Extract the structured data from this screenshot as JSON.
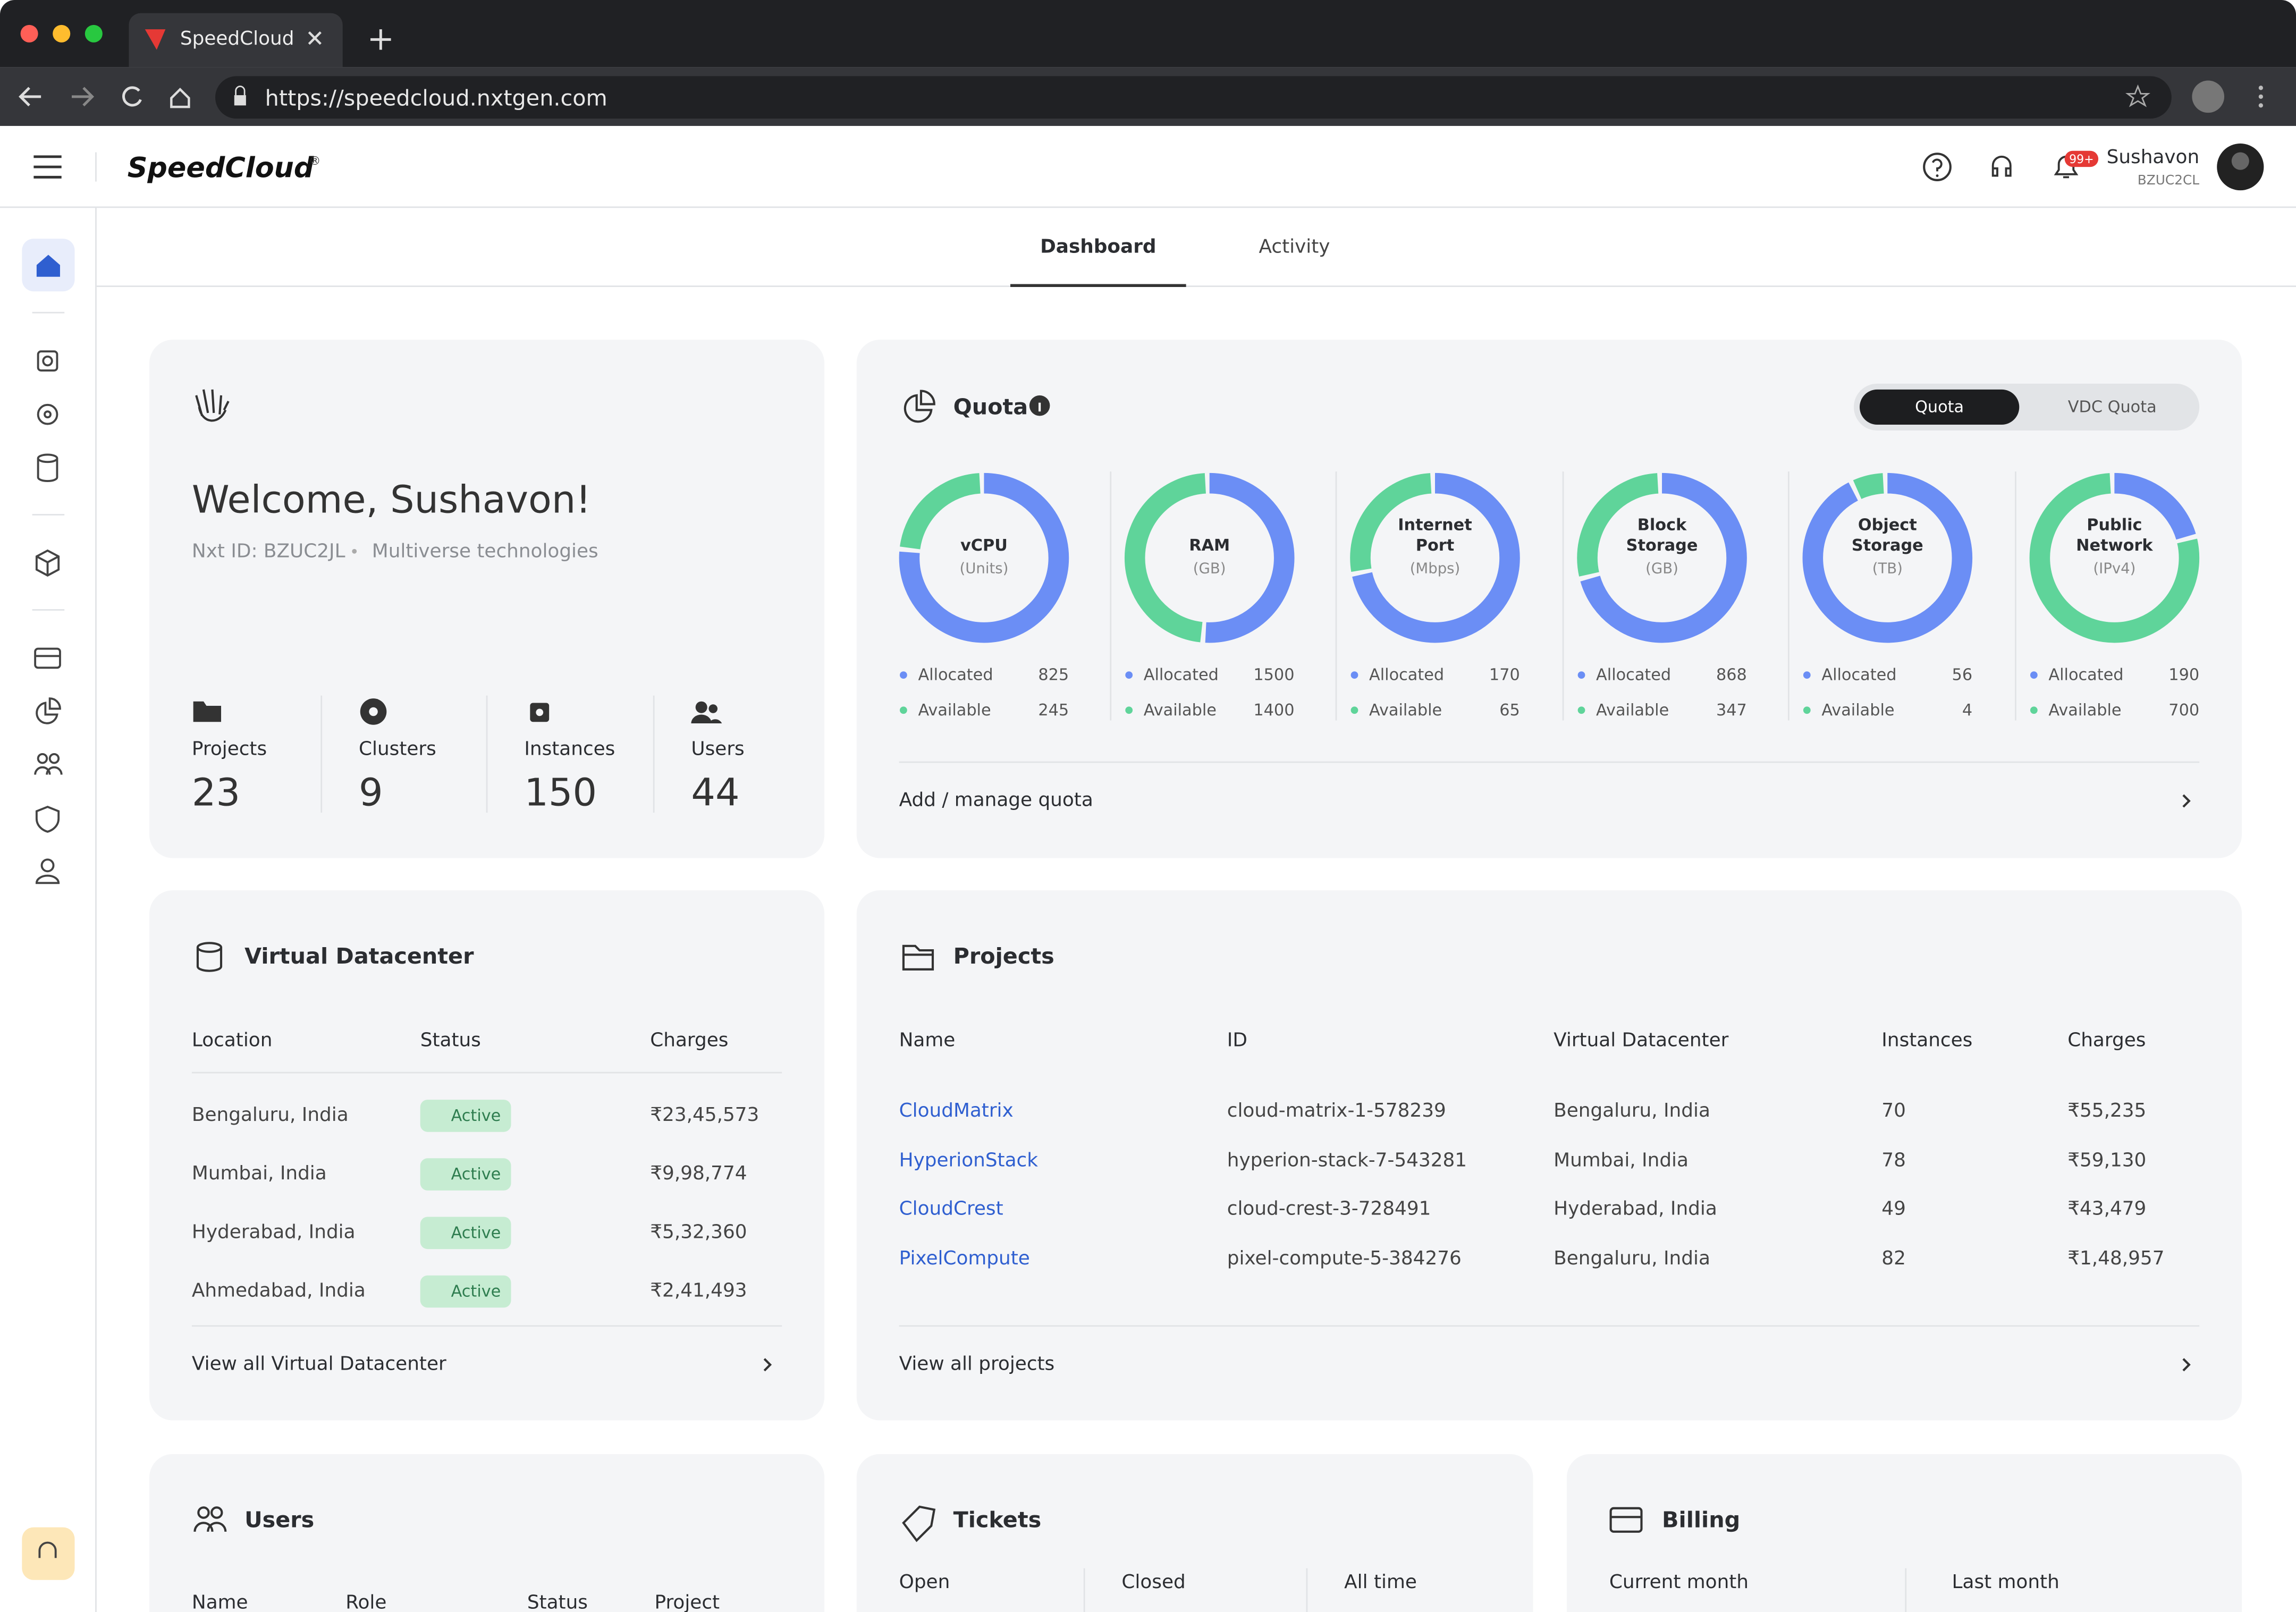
{
  "browser": {
    "tab_title": "SpeedCloud",
    "url": "https://speedcloud.nxtgen.com"
  },
  "header": {
    "brand": "SpeedCloud",
    "trademark": "®",
    "notification_count": "99+",
    "user_name": "Sushavon",
    "user_id": "BZUC2CL"
  },
  "tabs": [
    "Dashboard",
    "Activity"
  ],
  "welcome": {
    "title": "Welcome, Sushavon!",
    "nxt_id": "Nxt ID: BZUC2JL",
    "organization": "Multiverse technologies",
    "stats": [
      {
        "label": "Projects",
        "value": 23
      },
      {
        "label": "Clusters",
        "value": 9
      },
      {
        "label": "Instances",
        "value": 150
      },
      {
        "label": "Users",
        "value": 44
      }
    ]
  },
  "quota": {
    "title": "Quota",
    "toggle": [
      "Quota",
      "VDC Quota"
    ],
    "legend": [
      "Allocated",
      "Available"
    ],
    "items": [
      {
        "name": "vCPU",
        "unit": "(Units)",
        "allocated": 825,
        "available": 245
      },
      {
        "name": "RAM",
        "unit": "(GB)",
        "allocated": 1500,
        "available": 1400
      },
      {
        "name": "Internet Port",
        "unit": "(Mbps)",
        "allocated": 170,
        "available": 65
      },
      {
        "name": "Block Storage",
        "unit": "(GB)",
        "allocated": 868,
        "available": 347
      },
      {
        "name": "Object Storage",
        "unit": "(TB)",
        "allocated": 56,
        "available": 4
      },
      {
        "name": "Public Network",
        "unit": "(IPv4)",
        "allocated": 190,
        "available": 700
      }
    ],
    "link": "Add / manage quota"
  },
  "virtual_datacenter": {
    "title": "Virtual Datacenter",
    "columns": [
      "Location",
      "Status",
      "Charges"
    ],
    "rows": [
      [
        "Bengaluru, India",
        "Active",
        "₹23,45,573"
      ],
      [
        "Mumbai, India",
        "Active",
        "₹9,98,774"
      ],
      [
        "Hyderabad, India",
        "Active",
        "₹5,32,360"
      ],
      [
        "Ahmedabad, India",
        "Active",
        "₹2,41,493"
      ]
    ],
    "link": "View all Virtual Datacenter"
  },
  "projects": {
    "title": "Projects",
    "columns": [
      "Name",
      "ID",
      "Virtual Datacenter",
      "Instances",
      "Charges"
    ],
    "rows": [
      [
        "CloudMatrix",
        "cloud-matrix-1-578239",
        "Bengaluru, India",
        70,
        "₹55,235"
      ],
      [
        "HyperionStack",
        "hyperion-stack-7-543281",
        "Mumbai, India",
        78,
        "₹59,130"
      ],
      [
        "CloudCrest",
        "cloud-crest-3-728491",
        "Hyderabad, India",
        49,
        "₹43,479"
      ],
      [
        "PixelCompute",
        "pixel-compute-5-384276",
        "Bengaluru, India",
        82,
        "₹1,48,957"
      ]
    ],
    "link": "View all projects"
  },
  "users": {
    "title": "Users",
    "columns": [
      "Name",
      "Role",
      "Status",
      "Project"
    ]
  },
  "tickets": {
    "title": "Tickets",
    "columns": [
      "Open",
      "Closed",
      "All time"
    ]
  },
  "billing": {
    "title": "Billing",
    "columns": [
      "Current month",
      "Last month"
    ]
  }
}
